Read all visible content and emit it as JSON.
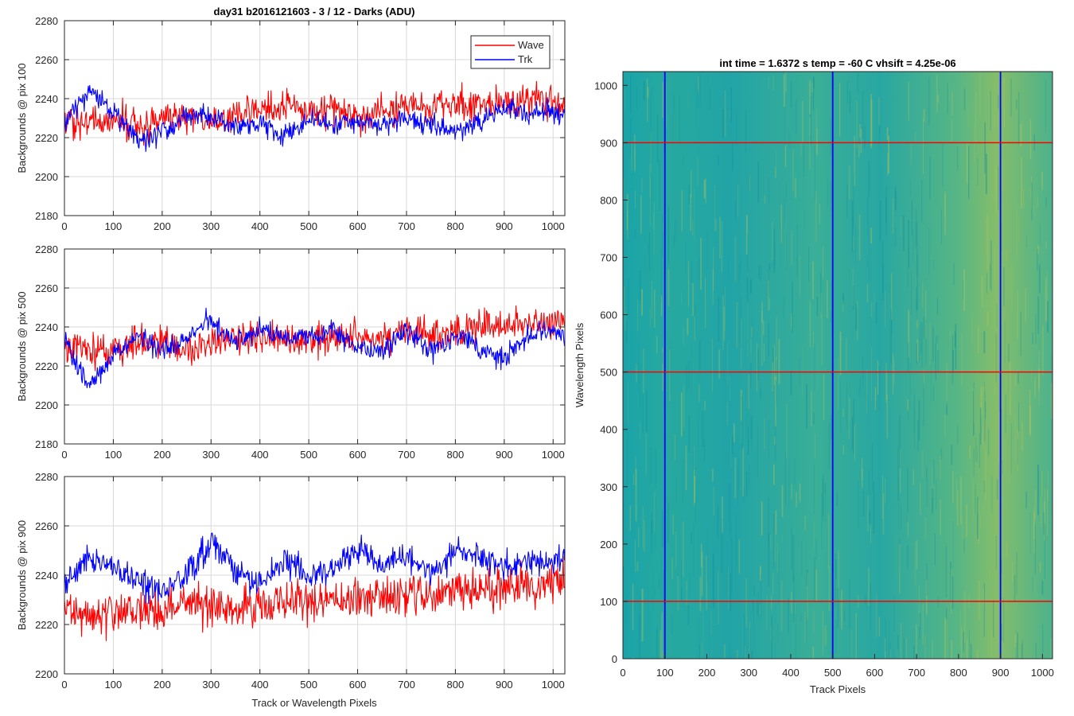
{
  "figure": {
    "title_left": "day31 b2016121603 - 3 / 12 - Darks (ADU)",
    "title_right": "int time = 1.6372 s    temp = -60 C    vhsift = 4.25e-06"
  },
  "colors": {
    "wave": "#ff0000",
    "trk": "#0000ff",
    "grid": "#d9d9d9",
    "axis": "#262626"
  },
  "chart_data": [
    {
      "type": "line",
      "ylabel": "Backgrounds @ pix 100",
      "xlabel": "",
      "xlim": [
        0,
        1024
      ],
      "ylim": [
        2180,
        2280
      ],
      "xticks": [
        0,
        100,
        200,
        300,
        400,
        500,
        600,
        700,
        800,
        900,
        1000
      ],
      "yticks": [
        2180,
        2200,
        2220,
        2240,
        2260,
        2280
      ],
      "grid": true,
      "legend": {
        "placement": "top-right",
        "entries": [
          "Wave",
          "Trk"
        ]
      },
      "series": [
        {
          "name": "Wave",
          "x": [
            0,
            50,
            100,
            150,
            200,
            250,
            300,
            350,
            400,
            450,
            500,
            550,
            600,
            650,
            700,
            750,
            800,
            850,
            900,
            950,
            1000,
            1024
          ],
          "values": [
            2226,
            2228,
            2230,
            2226,
            2229,
            2231,
            2228,
            2232,
            2234,
            2236,
            2235,
            2234,
            2230,
            2233,
            2237,
            2236,
            2237,
            2238,
            2237,
            2239,
            2238,
            2236
          ]
        },
        {
          "name": "Trk",
          "x": [
            0,
            50,
            100,
            150,
            200,
            250,
            300,
            350,
            400,
            450,
            500,
            550,
            600,
            650,
            700,
            750,
            800,
            850,
            900,
            950,
            1000,
            1024
          ],
          "values": [
            2228,
            2244,
            2234,
            2218,
            2222,
            2232,
            2230,
            2226,
            2226,
            2220,
            2230,
            2226,
            2228,
            2226,
            2230,
            2227,
            2223,
            2228,
            2236,
            2232,
            2234,
            2230
          ]
        }
      ]
    },
    {
      "type": "line",
      "ylabel": "Backgrounds @ pix 500",
      "xlabel": "",
      "xlim": [
        0,
        1024
      ],
      "ylim": [
        2180,
        2280
      ],
      "xticks": [
        0,
        100,
        200,
        300,
        400,
        500,
        600,
        700,
        800,
        900,
        1000
      ],
      "yticks": [
        2180,
        2200,
        2220,
        2240,
        2260,
        2280
      ],
      "grid": true,
      "series": [
        {
          "name": "Wave",
          "x": [
            0,
            50,
            100,
            150,
            200,
            250,
            300,
            350,
            400,
            450,
            500,
            550,
            600,
            650,
            700,
            750,
            800,
            850,
            900,
            950,
            1000,
            1024
          ],
          "values": [
            2230,
            2227,
            2229,
            2230,
            2232,
            2228,
            2233,
            2234,
            2233,
            2235,
            2232,
            2235,
            2236,
            2234,
            2238,
            2236,
            2238,
            2240,
            2240,
            2241,
            2242,
            2244
          ]
        },
        {
          "name": "Trk",
          "x": [
            0,
            50,
            100,
            150,
            200,
            250,
            300,
            350,
            400,
            450,
            500,
            550,
            600,
            650,
            700,
            750,
            800,
            850,
            900,
            950,
            1000,
            1024
          ],
          "values": [
            2232,
            2208,
            2226,
            2236,
            2228,
            2234,
            2244,
            2232,
            2238,
            2234,
            2236,
            2238,
            2230,
            2228,
            2238,
            2228,
            2234,
            2230,
            2224,
            2236,
            2238,
            2236
          ]
        }
      ]
    },
    {
      "type": "line",
      "ylabel": "Backgrounds @ pix 900",
      "xlabel": "Track or Wavelength Pixels",
      "xlim": [
        0,
        1024
      ],
      "ylim": [
        2200,
        2280
      ],
      "xticks": [
        0,
        100,
        200,
        300,
        400,
        500,
        600,
        700,
        800,
        900,
        1000
      ],
      "yticks": [
        2200,
        2220,
        2240,
        2260,
        2280
      ],
      "grid": true,
      "series": [
        {
          "name": "Wave",
          "x": [
            0,
            50,
            100,
            150,
            200,
            250,
            300,
            350,
            400,
            450,
            500,
            550,
            600,
            650,
            700,
            750,
            800,
            850,
            900,
            950,
            1000,
            1024
          ],
          "values": [
            2226,
            2224,
            2225,
            2228,
            2224,
            2229,
            2228,
            2227,
            2229,
            2229,
            2230,
            2230,
            2231,
            2230,
            2232,
            2232,
            2234,
            2234,
            2235,
            2236,
            2237,
            2238
          ]
        },
        {
          "name": "Trk",
          "x": [
            0,
            50,
            100,
            150,
            200,
            250,
            300,
            350,
            400,
            450,
            500,
            550,
            600,
            650,
            700,
            750,
            800,
            850,
            900,
            950,
            1000,
            1024
          ],
          "values": [
            2236,
            2248,
            2244,
            2238,
            2234,
            2240,
            2254,
            2242,
            2236,
            2246,
            2240,
            2242,
            2250,
            2244,
            2248,
            2240,
            2250,
            2246,
            2244,
            2246,
            2246,
            2248
          ]
        }
      ]
    },
    {
      "type": "heatmap",
      "title": "int time = 1.6372 s    temp = -60 C    vhsift = 4.25e-06",
      "xlabel": "Track Pixels",
      "ylabel": "Wavelength Pixels",
      "xlim": [
        0,
        1024
      ],
      "ylim": [
        0,
        1024
      ],
      "xticks": [
        0,
        100,
        200,
        300,
        400,
        500,
        600,
        700,
        800,
        900,
        1000
      ],
      "yticks": [
        0,
        100,
        200,
        300,
        400,
        500,
        600,
        700,
        800,
        900,
        1000
      ],
      "grid": false,
      "colormap": [
        "#1a9fa6",
        "#a8bf5a"
      ],
      "vertical_lines_x": [
        100,
        500,
        900
      ],
      "horizontal_lines_y": [
        100,
        500,
        900
      ],
      "vertical_line_color": "#0000ff",
      "horizontal_line_color": "#ff0000"
    }
  ]
}
